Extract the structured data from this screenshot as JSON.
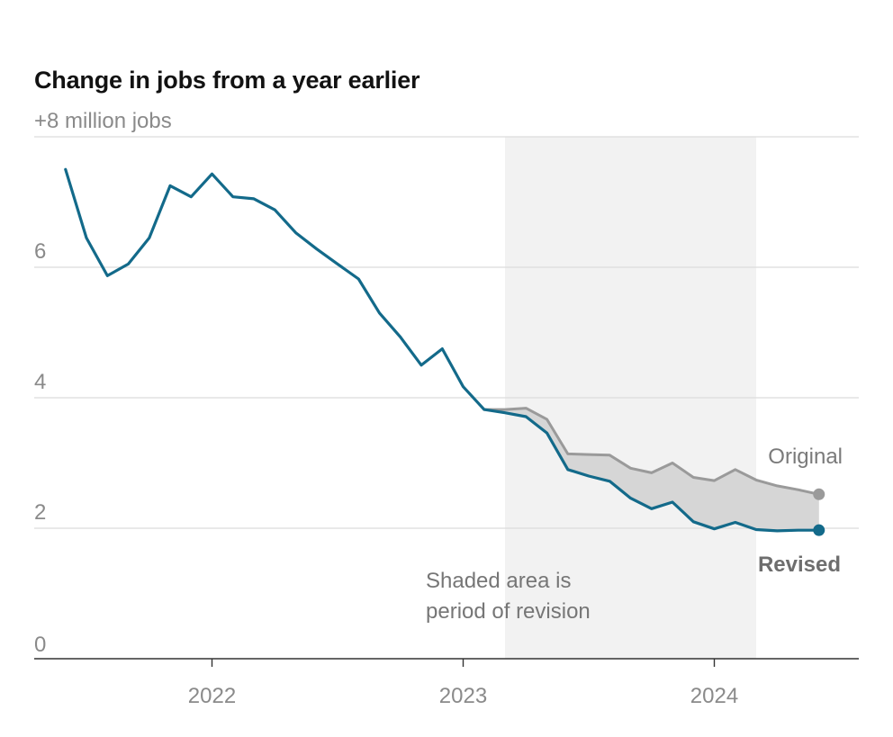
{
  "chart_data": {
    "type": "line",
    "title": "Change in jobs from a year earlier",
    "y_unit_label": "+8 million jobs",
    "ylim": [
      0,
      8
    ],
    "y_ticks": [
      {
        "value": 8,
        "label": "+8 million jobs"
      },
      {
        "value": 6,
        "label": "6"
      },
      {
        "value": 4,
        "label": "4"
      },
      {
        "value": 2,
        "label": "2"
      },
      {
        "value": 0,
        "label": "0"
      }
    ],
    "x_ticks": [
      {
        "value": "2022-01",
        "label": "2022"
      },
      {
        "value": "2023-01",
        "label": "2023"
      },
      {
        "value": "2024-01",
        "label": "2024"
      }
    ],
    "xlim": [
      "2021-03",
      "2024-07"
    ],
    "grid": true,
    "shaded_region": {
      "start": "2023-03",
      "end": "2024-03",
      "label": [
        "Shaded area is",
        "period of revision"
      ],
      "color": "#f2f2f2"
    },
    "series": [
      {
        "name": "Revised",
        "color": "#136a8a",
        "points": [
          [
            "2021-06",
            7.5
          ],
          [
            "2021-07",
            6.45
          ],
          [
            "2021-08",
            5.87
          ],
          [
            "2021-09",
            6.05
          ],
          [
            "2021-10",
            6.45
          ],
          [
            "2021-11",
            7.25
          ],
          [
            "2021-12",
            7.08
          ],
          [
            "2022-01",
            7.43
          ],
          [
            "2022-02",
            7.08
          ],
          [
            "2022-03",
            7.05
          ],
          [
            "2022-04",
            6.88
          ],
          [
            "2022-05",
            6.53
          ],
          [
            "2022-06",
            6.28
          ],
          [
            "2022-07",
            6.05
          ],
          [
            "2022-08",
            5.82
          ],
          [
            "2022-09",
            5.3
          ],
          [
            "2022-10",
            4.93
          ],
          [
            "2022-11",
            4.5
          ],
          [
            "2022-12",
            4.75
          ],
          [
            "2023-01",
            4.17
          ],
          [
            "2023-02",
            3.82
          ],
          [
            "2023-03",
            3.77
          ],
          [
            "2023-04",
            3.71
          ],
          [
            "2023-05",
            3.46
          ],
          [
            "2023-06",
            2.9
          ],
          [
            "2023-07",
            2.8
          ],
          [
            "2023-08",
            2.72
          ],
          [
            "2023-09",
            2.46
          ],
          [
            "2023-10",
            2.3
          ],
          [
            "2023-11",
            2.4
          ],
          [
            "2023-12",
            2.1
          ],
          [
            "2024-01",
            1.99
          ],
          [
            "2024-02",
            2.09
          ],
          [
            "2024-03",
            1.98
          ],
          [
            "2024-04",
            1.96
          ],
          [
            "2024-05",
            1.97
          ],
          [
            "2024-06",
            1.97
          ]
        ]
      },
      {
        "name": "Original",
        "color": "#9a9a9a",
        "points": [
          [
            "2023-02",
            3.82
          ],
          [
            "2023-03",
            3.82
          ],
          [
            "2023-04",
            3.84
          ],
          [
            "2023-05",
            3.67
          ],
          [
            "2023-06",
            3.14
          ],
          [
            "2023-07",
            3.13
          ],
          [
            "2023-08",
            3.12
          ],
          [
            "2023-09",
            2.92
          ],
          [
            "2023-10",
            2.85
          ],
          [
            "2023-11",
            3.0
          ],
          [
            "2023-12",
            2.78
          ],
          [
            "2024-01",
            2.73
          ],
          [
            "2024-02",
            2.9
          ],
          [
            "2024-03",
            2.74
          ],
          [
            "2024-04",
            2.65
          ],
          [
            "2024-05",
            2.59
          ],
          [
            "2024-06",
            2.52
          ]
        ]
      }
    ],
    "annotations": {
      "original_label": "Original",
      "revised_label": "Revised"
    },
    "gap_fill_color": "#d6d6d6"
  }
}
